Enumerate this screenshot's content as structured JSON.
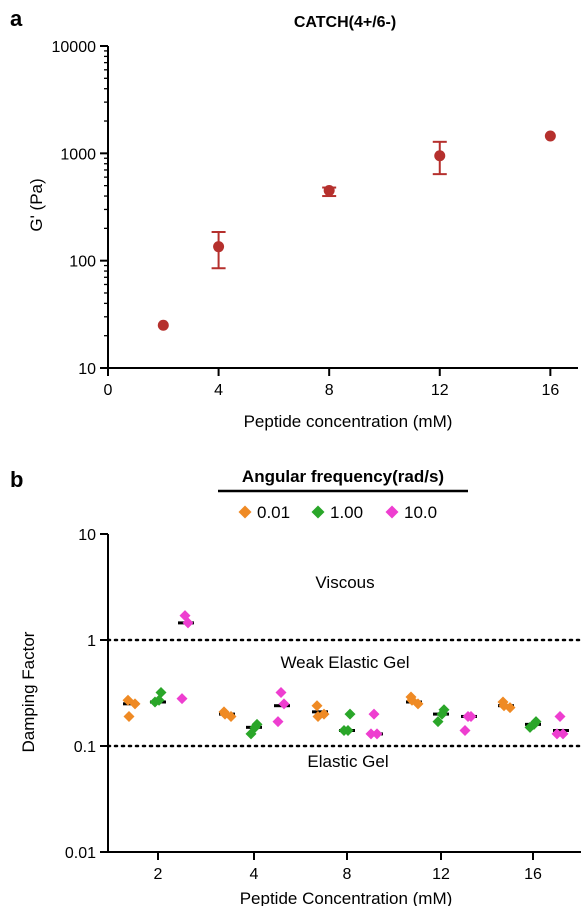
{
  "panel_a": {
    "letter": "a",
    "chart_data": {
      "type": "scatter",
      "title": "CATCH(4+/6-)",
      "xlabel": "Peptide concentration (mM)",
      "ylabel": "G' (Pa)",
      "xlim": [
        0,
        17
      ],
      "ylim": [
        10,
        10000
      ],
      "yscale": "log",
      "x_ticks": [
        "0",
        "4",
        "8",
        "12",
        "16"
      ],
      "y_ticks": [
        "10",
        "100",
        "1000",
        "10000"
      ],
      "marker_color": "#b5302d",
      "points": [
        {
          "x": 2,
          "y": 25
        },
        {
          "x": 4,
          "y": 135,
          "err_low": 85,
          "err_high": 185
        },
        {
          "x": 8,
          "y": 450,
          "err_low": 400,
          "err_high": 480
        },
        {
          "x": 12,
          "y": 950,
          "err_low": 640,
          "err_high": 1280
        },
        {
          "x": 16,
          "y": 1450
        }
      ]
    }
  },
  "panel_b": {
    "letter": "b",
    "chart_data": {
      "type": "scatter",
      "legend_title": "Angular frequency(rad/s)",
      "legend_position": "top",
      "xlabel": "Peptide Concentration (mM)",
      "ylabel": "Damping Factor",
      "yscale": "log",
      "ylim": [
        0.01,
        10
      ],
      "x_ticks": [
        "2",
        "4",
        "8",
        "12",
        "16"
      ],
      "y_ticks": [
        "0.01",
        "0.1",
        "1",
        "10"
      ],
      "reference_lines": [
        1,
        0.1
      ],
      "regions": [
        "Viscous",
        "Weak Elastic Gel",
        "Elastic Gel"
      ],
      "groups": [
        "2",
        "4",
        "8",
        "12",
        "16"
      ],
      "series": [
        {
          "name": "0.01",
          "color": "#ef8a24",
          "values": [
            [
              0.27,
              0.25,
              0.19
            ],
            [
              0.21,
              0.19,
              0.2
            ],
            [
              0.24,
              0.2,
              0.19
            ],
            [
              0.29,
              0.25,
              0.27
            ],
            [
              0.26,
              0.23,
              0.24
            ]
          ],
          "medians": [
            0.25,
            0.2,
            0.21,
            0.26,
            0.24
          ]
        },
        {
          "name": "1.00",
          "color": "#2aa629",
          "values": [
            [
              0.32,
              0.26,
              0.27
            ],
            [
              0.16,
              0.13,
              0.15
            ],
            [
              0.2,
              0.14,
              0.14
            ],
            [
              0.22,
              0.17,
              0.2
            ],
            [
              0.17,
              0.15,
              0.16
            ]
          ],
          "medians": [
            0.26,
            0.15,
            0.14,
            0.2,
            0.16
          ]
        },
        {
          "name": "10.0",
          "color": "#ee3ed0",
          "values": [
            [
              1.7,
              1.45,
              0.28
            ],
            [
              0.32,
              0.25,
              0.17
            ],
            [
              0.2,
              0.13,
              0.13
            ],
            [
              0.19,
              0.19,
              0.14
            ],
            [
              0.19,
              0.13,
              0.13
            ]
          ],
          "medians": [
            1.45,
            0.24,
            0.13,
            0.19,
            0.14
          ]
        }
      ]
    }
  }
}
